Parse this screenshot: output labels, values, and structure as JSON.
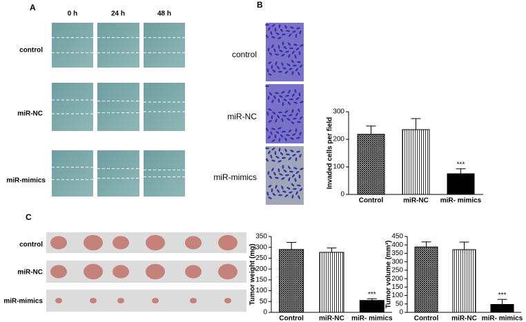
{
  "panels": {
    "A": {
      "label": "A",
      "columns": [
        "0 h",
        "24 h",
        "48 h"
      ],
      "rows": [
        "control",
        "miR-NC",
        "miR-mimics"
      ]
    },
    "B": {
      "label": "B",
      "rows": [
        "control",
        "miR-NC",
        "miR-mimics"
      ]
    },
    "C": {
      "label": "C",
      "rows": [
        "control",
        "miR-NC",
        "miR-mimics"
      ]
    }
  },
  "chart_data": [
    {
      "type": "bar",
      "y_label": "Invaded cells per field",
      "categories": [
        "Control",
        "miR-NC",
        "miR- mimics"
      ],
      "values": [
        218,
        235,
        75
      ],
      "errors": [
        30,
        40,
        18
      ],
      "fills": [
        "crosshatch",
        "vertical",
        "solid"
      ],
      "annotation": "***",
      "ylim": [
        0,
        300
      ],
      "yticks": [
        0,
        100,
        200,
        300
      ],
      "color": "#000000"
    },
    {
      "type": "bar",
      "y_label": "Tumor weight (mg)",
      "categories": [
        "Control",
        "miR-NC",
        "miR- mimics"
      ],
      "values": [
        290,
        277,
        55
      ],
      "errors": [
        33,
        20,
        8
      ],
      "fills": [
        "crosshatch",
        "vertical",
        "solid"
      ],
      "annotation": "***",
      "ylim": [
        0,
        350
      ],
      "yticks": [
        0,
        50,
        100,
        150,
        200,
        250,
        300,
        350
      ],
      "color": "#000000"
    },
    {
      "type": "bar",
      "y_label": "Tumor volume (mm³)",
      "categories": [
        "Control",
        "miR-NC",
        "miR- mimics"
      ],
      "values": [
        388,
        372,
        47
      ],
      "errors": [
        30,
        45,
        30
      ],
      "fills": [
        "crosshatch",
        "vertical",
        "solid"
      ],
      "annotation": "***",
      "ylim": [
        0,
        450
      ],
      "yticks": [
        0,
        50,
        100,
        150,
        200,
        250,
        300,
        350,
        400,
        450
      ],
      "color": "#000000"
    }
  ]
}
